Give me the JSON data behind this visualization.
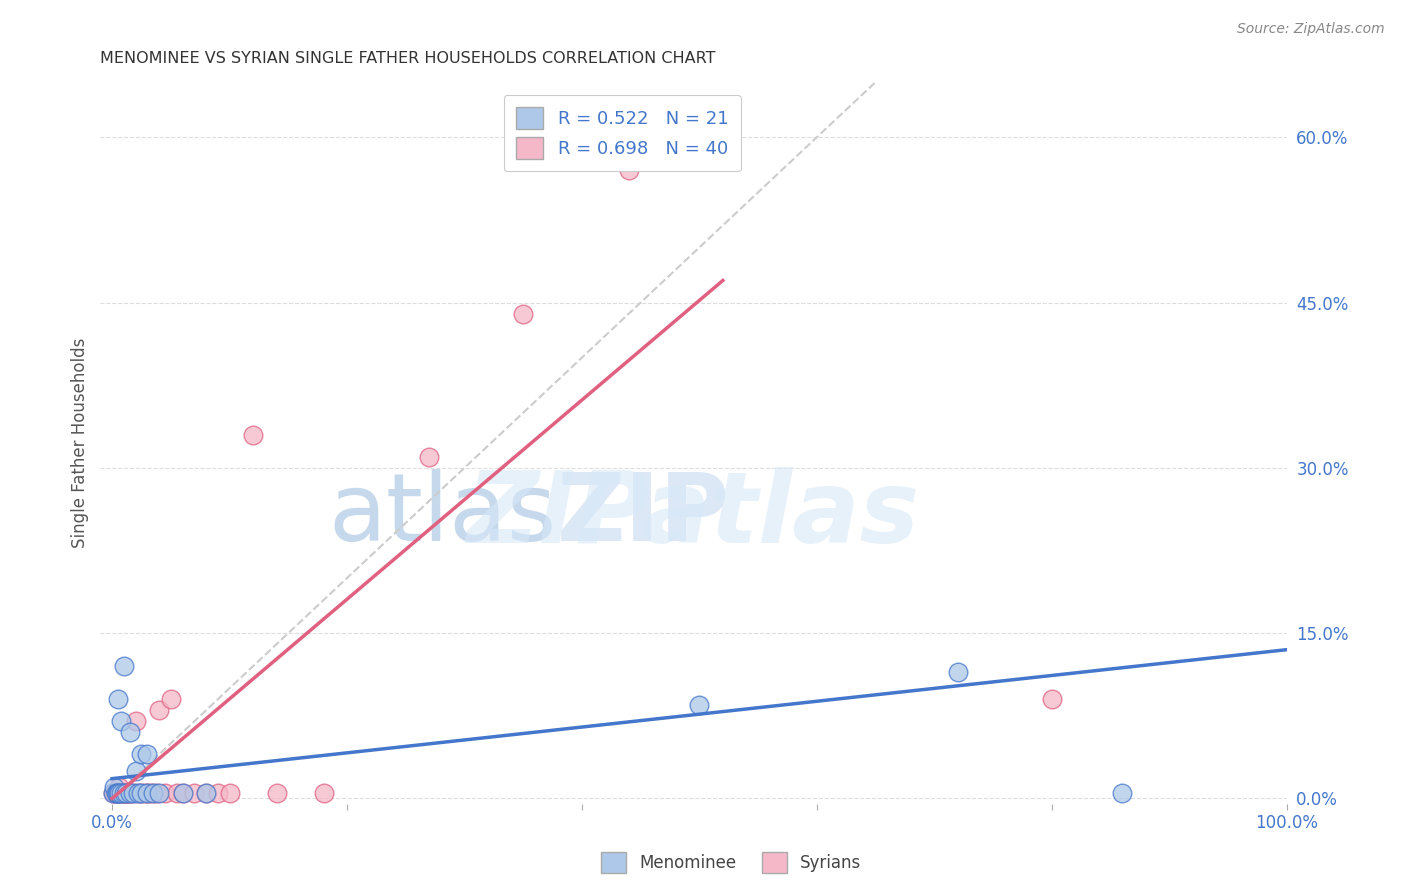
{
  "title": "MENOMINEE VS SYRIAN SINGLE FATHER HOUSEHOLDS CORRELATION CHART",
  "source": "Source: ZipAtlas.com",
  "ylabel": "Single Father Households",
  "ytick_labels": [
    "0.0%",
    "15.0%",
    "30.0%",
    "45.0%",
    "60.0%"
  ],
  "ytick_values": [
    0.0,
    0.15,
    0.3,
    0.45,
    0.6
  ],
  "xlim": [
    0.0,
    1.0
  ],
  "ylim": [
    -0.005,
    0.65
  ],
  "menominee_R": 0.522,
  "menominee_N": 21,
  "syrian_R": 0.698,
  "syrian_N": 40,
  "menominee_color": "#adc8e8",
  "syrian_color": "#f5b8c8",
  "menominee_line_color": "#4477cc",
  "syrian_line_color": "#e06080",
  "diagonal_color": "#cccccc",
  "background_color": "#ffffff",
  "legend_text_color": "#4477cc",
  "menominee_x": [
    0.001,
    0.002,
    0.003,
    0.004,
    0.005,
    0.006,
    0.008,
    0.01,
    0.012,
    0.015,
    0.018,
    0.022,
    0.025,
    0.03,
    0.035,
    0.04,
    0.06,
    0.08,
    0.5,
    0.72,
    0.86
  ],
  "menominee_y": [
    0.005,
    0.01,
    0.005,
    0.005,
    0.005,
    0.005,
    0.005,
    0.005,
    0.005,
    0.005,
    0.005,
    0.005,
    0.005,
    0.005,
    0.005,
    0.005,
    0.005,
    0.005,
    0.085,
    0.115,
    0.005
  ],
  "syrian_x": [
    0.001,
    0.002,
    0.003,
    0.004,
    0.005,
    0.006,
    0.007,
    0.008,
    0.009,
    0.01,
    0.011,
    0.012,
    0.013,
    0.014,
    0.015,
    0.018,
    0.02,
    0.022,
    0.025,
    0.028,
    0.03,
    0.032,
    0.035,
    0.038,
    0.04,
    0.045,
    0.05,
    0.055,
    0.06,
    0.07,
    0.08,
    0.09,
    0.1,
    0.12,
    0.14,
    0.18,
    0.27,
    0.35,
    0.44,
    0.8
  ],
  "syrian_y": [
    0.005,
    0.005,
    0.005,
    0.005,
    0.005,
    0.01,
    0.005,
    0.005,
    0.005,
    0.005,
    0.005,
    0.005,
    0.005,
    0.005,
    0.005,
    0.005,
    0.07,
    0.005,
    0.005,
    0.005,
    0.005,
    0.005,
    0.005,
    0.005,
    0.08,
    0.005,
    0.09,
    0.005,
    0.005,
    0.005,
    0.005,
    0.005,
    0.005,
    0.33,
    0.005,
    0.005,
    0.31,
    0.44,
    0.57,
    0.09
  ],
  "menominee_line_x": [
    0.0,
    1.0
  ],
  "menominee_line_y": [
    0.018,
    0.135
  ],
  "syrian_line_x": [
    0.0,
    0.52
  ],
  "syrian_line_y": [
    0.0,
    0.47
  ],
  "diag_line_x": [
    0.0,
    0.65
  ],
  "diag_line_y": [
    0.0,
    0.65
  ],
  "watermark_zip": "ZIP",
  "watermark_atlas": "atlas",
  "grid_color": "#dddddd",
  "menominee_extra_x": [
    0.005,
    0.008,
    0.01,
    0.015,
    0.02,
    0.025,
    0.03
  ],
  "menominee_extra_y": [
    0.09,
    0.07,
    0.12,
    0.06,
    0.025,
    0.04,
    0.04
  ]
}
